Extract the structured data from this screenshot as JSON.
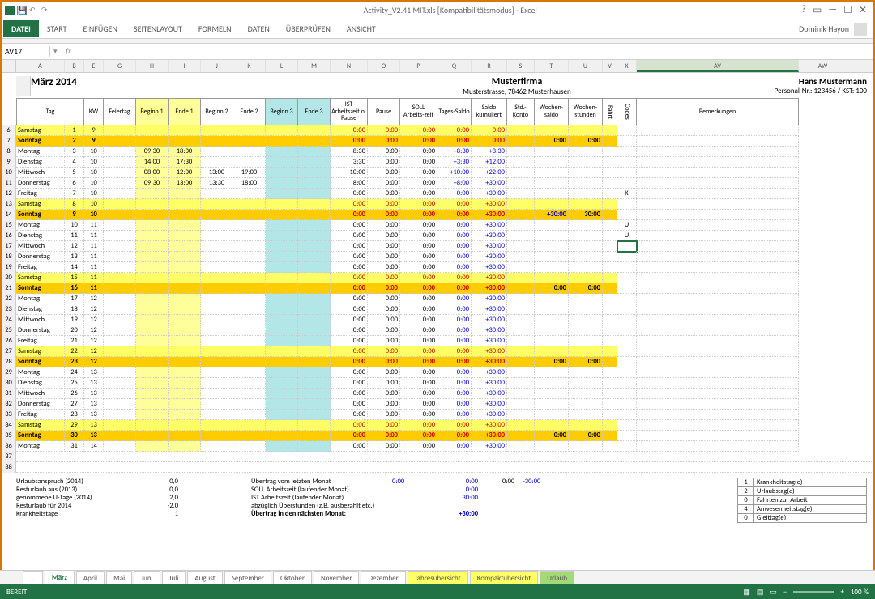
{
  "app": {
    "title": "Activity_V2.41 MIT.xls [Kompatibilitätsmodus] - Excel",
    "user": "Dominik Hayon"
  },
  "ribbon": {
    "file": "DATEI",
    "tabs": [
      "START",
      "EINFÜGEN",
      "SEITENLAYOUT",
      "FORMELN",
      "DATEN",
      "ÜBERPRÜFEN",
      "ANSICHT"
    ]
  },
  "namebox": "AV17",
  "formula": "",
  "colheaders": [
    "A",
    "B",
    "E",
    "G",
    "H",
    "I",
    "J",
    "K",
    "L",
    "M",
    "N",
    "O",
    "P",
    "Q",
    "R",
    "S",
    "T",
    "U",
    "V",
    "X",
    "AV",
    "AW"
  ],
  "selected_col_index": 20,
  "period": "März 2014",
  "company": {
    "name": "Musterfirma",
    "addr": "Musterstrasse, 78462 Musterhausen"
  },
  "person": {
    "name": "Hans Mustermann",
    "id": "Personal-Nr.: 123456 / KST: 100"
  },
  "headers": {
    "tag": "Tag",
    "kw": "KW",
    "feiertag": "Feiertag",
    "beginn1": "Beginn 1",
    "ende1": "Ende 1",
    "beginn2": "Beginn 2",
    "ende2": "Ende 2",
    "beginn3": "Beginn 3",
    "ende3": "Ende 3",
    "ist": "IST Arbeitszeit o. Pause",
    "pause": "Pause",
    "soll": "SOLL Arbeits-zeit",
    "tsaldo": "Tages-Saldo",
    "saldok": "Saldo kumuliert",
    "stdkonto": "Std.-Konto",
    "wsaldo": "Wochen-saldo",
    "wstd": "Wochen-stunden",
    "fahrt": "Fahrt",
    "codes": "Codes",
    "bem": "Bemerkungen"
  },
  "rows": [
    {
      "rn": 6,
      "day": "Samstag",
      "dn": 1,
      "kw": 9,
      "type": "sat",
      "ist": "0:00",
      "pause": "0:00",
      "soll": "0:00",
      "ts": "0:00",
      "sk": "0:00"
    },
    {
      "rn": 7,
      "day": "Sonntag",
      "dn": 2,
      "kw": 9,
      "type": "sun",
      "ist": "0:00",
      "pause": "0:00",
      "soll": "0:00",
      "ts": "0:00",
      "sk": "0:00",
      "ws": "0:00",
      "wst": "0:00"
    },
    {
      "rn": 8,
      "day": "Montag",
      "dn": 3,
      "kw": 10,
      "b1": "09:30",
      "e1": "18:00",
      "ist": "8:30",
      "pause": "0:00",
      "soll": "0:00",
      "ts": "+8:30",
      "sk": "+8:30"
    },
    {
      "rn": 9,
      "day": "Dienstag",
      "dn": 4,
      "kw": 10,
      "b1": "14:00",
      "e1": "17:30",
      "ist": "3:30",
      "pause": "0:00",
      "soll": "0:00",
      "ts": "+3:30",
      "sk": "+12:00"
    },
    {
      "rn": 10,
      "day": "Mittwoch",
      "dn": 5,
      "kw": 10,
      "b1": "08:00",
      "e1": "12:00",
      "b2": "13:00",
      "e2": "19:00",
      "ist": "10:00",
      "pause": "0:00",
      "soll": "0:00",
      "ts": "+10:00",
      "sk": "+22:00"
    },
    {
      "rn": 11,
      "day": "Donnerstag",
      "dn": 6,
      "kw": 10,
      "b1": "09:30",
      "e1": "13:00",
      "b2": "13:30",
      "e2": "18:00",
      "ist": "8:00",
      "pause": "0:00",
      "soll": "0:00",
      "ts": "+8:00",
      "sk": "+30:00"
    },
    {
      "rn": 12,
      "day": "Freitag",
      "dn": 7,
      "kw": 10,
      "ist": "0:00",
      "pause": "0:00",
      "soll": "0:00",
      "ts": "0:00",
      "sk": "+30:00",
      "codes": "K"
    },
    {
      "rn": 13,
      "day": "Samstag",
      "dn": 8,
      "kw": 10,
      "type": "sat",
      "ist": "0:00",
      "pause": "0:00",
      "soll": "0:00",
      "ts": "0:00",
      "sk": "+30:00"
    },
    {
      "rn": 14,
      "day": "Sonntag",
      "dn": 9,
      "kw": 10,
      "type": "sun",
      "ist": "0:00",
      "pause": "0:00",
      "soll": "0:00",
      "ts": "0:00",
      "sk": "+30:00",
      "ws": "+30:00",
      "wst": "30:00"
    },
    {
      "rn": 15,
      "day": "Montag",
      "dn": 10,
      "kw": 11,
      "ist": "0:00",
      "pause": "0:00",
      "soll": "0:00",
      "ts": "0:00",
      "sk": "+30:00",
      "codes": "U"
    },
    {
      "rn": 16,
      "day": "Dienstag",
      "dn": 11,
      "kw": 11,
      "ist": "0:00",
      "pause": "0:00",
      "soll": "0:00",
      "ts": "0:00",
      "sk": "+30:00",
      "codes": "U"
    },
    {
      "rn": 17,
      "day": "Mittwoch",
      "dn": 12,
      "kw": 11,
      "ist": "0:00",
      "pause": "0:00",
      "soll": "0:00",
      "ts": "0:00",
      "sk": "+30:00",
      "sel": true
    },
    {
      "rn": 18,
      "day": "Donnerstag",
      "dn": 13,
      "kw": 11,
      "ist": "0:00",
      "pause": "0:00",
      "soll": "0:00",
      "ts": "0:00",
      "sk": "+30:00"
    },
    {
      "rn": 19,
      "day": "Freitag",
      "dn": 14,
      "kw": 11,
      "ist": "0:00",
      "pause": "0:00",
      "soll": "0:00",
      "ts": "0:00",
      "sk": "+30:00"
    },
    {
      "rn": 20,
      "day": "Samstag",
      "dn": 15,
      "kw": 11,
      "type": "sat",
      "ist": "0:00",
      "pause": "0:00",
      "soll": "0:00",
      "ts": "0:00",
      "sk": "+30:00"
    },
    {
      "rn": 21,
      "day": "Sonntag",
      "dn": 16,
      "kw": 11,
      "type": "sun",
      "ist": "0:00",
      "pause": "0:00",
      "soll": "0:00",
      "ts": "0:00",
      "sk": "+30:00",
      "ws": "0:00",
      "wst": "0:00"
    },
    {
      "rn": 22,
      "day": "Montag",
      "dn": 17,
      "kw": 12,
      "ist": "0:00",
      "pause": "0:00",
      "soll": "0:00",
      "ts": "0:00",
      "sk": "+30:00"
    },
    {
      "rn": 23,
      "day": "Dienstag",
      "dn": 18,
      "kw": 12,
      "ist": "0:00",
      "pause": "0:00",
      "soll": "0:00",
      "ts": "0:00",
      "sk": "+30:00"
    },
    {
      "rn": 24,
      "day": "Mittwoch",
      "dn": 19,
      "kw": 12,
      "ist": "0:00",
      "pause": "0:00",
      "soll": "0:00",
      "ts": "0:00",
      "sk": "+30:00"
    },
    {
      "rn": 25,
      "day": "Donnerstag",
      "dn": 20,
      "kw": 12,
      "ist": "0:00",
      "pause": "0:00",
      "soll": "0:00",
      "ts": "0:00",
      "sk": "+30:00"
    },
    {
      "rn": 26,
      "day": "Freitag",
      "dn": 21,
      "kw": 12,
      "ist": "0:00",
      "pause": "0:00",
      "soll": "0:00",
      "ts": "0:00",
      "sk": "+30:00"
    },
    {
      "rn": 27,
      "day": "Samstag",
      "dn": 22,
      "kw": 12,
      "type": "sat",
      "ist": "0:00",
      "pause": "0:00",
      "soll": "0:00",
      "ts": "0:00",
      "sk": "+30:00"
    },
    {
      "rn": 28,
      "day": "Sonntag",
      "dn": 23,
      "kw": 12,
      "type": "sun",
      "ist": "0:00",
      "pause": "0:00",
      "soll": "0:00",
      "ts": "0:00",
      "sk": "+30:00",
      "ws": "0:00",
      "wst": "0:00"
    },
    {
      "rn": 29,
      "day": "Montag",
      "dn": 24,
      "kw": 13,
      "ist": "0:00",
      "pause": "0:00",
      "soll": "0:00",
      "ts": "0:00",
      "sk": "+30:00"
    },
    {
      "rn": 30,
      "day": "Dienstag",
      "dn": 25,
      "kw": 13,
      "ist": "0:00",
      "pause": "0:00",
      "soll": "0:00",
      "ts": "0:00",
      "sk": "+30:00"
    },
    {
      "rn": 31,
      "day": "Mittwoch",
      "dn": 26,
      "kw": 13,
      "ist": "0:00",
      "pause": "0:00",
      "soll": "0:00",
      "ts": "0:00",
      "sk": "+30:00"
    },
    {
      "rn": 32,
      "day": "Donnerstag",
      "dn": 27,
      "kw": 13,
      "ist": "0:00",
      "pause": "0:00",
      "soll": "0:00",
      "ts": "0:00",
      "sk": "+30:00"
    },
    {
      "rn": 33,
      "day": "Freitag",
      "dn": 28,
      "kw": 13,
      "ist": "0:00",
      "pause": "0:00",
      "soll": "0:00",
      "ts": "0:00",
      "sk": "+30:00"
    },
    {
      "rn": 34,
      "day": "Samstag",
      "dn": 29,
      "kw": 13,
      "type": "sat",
      "ist": "0:00",
      "pause": "0:00",
      "soll": "0:00",
      "ts": "0:00",
      "sk": "+30:00"
    },
    {
      "rn": 35,
      "day": "Sonntag",
      "dn": 30,
      "kw": 13,
      "type": "sun",
      "ist": "0:00",
      "pause": "0:00",
      "soll": "0:00",
      "ts": "0:00",
      "sk": "+30:00",
      "ws": "0:00",
      "wst": "0:00"
    },
    {
      "rn": 36,
      "day": "Montag",
      "dn": 31,
      "kw": 14,
      "ist": "0:00",
      "pause": "0:00",
      "soll": "0:00",
      "ts": "0:00",
      "sk": "+30:00"
    }
  ],
  "summary_left": [
    {
      "l": "Urlaubsanspruch (2014)",
      "v": "0,0"
    },
    {
      "l": "Resturlaub aus (2013)",
      "v": "0,0"
    },
    {
      "l": "genommene U-Tage (2014)",
      "v": "2,0"
    },
    {
      "l": "Resturlaub für 2014",
      "v": "-2,0"
    },
    {
      "l": "Krankheitstage",
      "v": "1"
    }
  ],
  "summary_mid": [
    {
      "l": "Übertrag vom letzten Monat",
      "v": "0:00",
      "v2": "0:00"
    },
    {
      "l": "SOLL Arbeitszeit (laufender Monat)",
      "v": "0:00"
    },
    {
      "l": "IST Arbeitszeit (laufender Monat)",
      "v": "30:00"
    },
    {
      "l": "abzüglich Überstunden (z.B. ausbezahlt etc.)",
      "v": ""
    },
    {
      "l": "Übertrag in den nächsten Monat:",
      "v": "+30:00",
      "bold": true
    }
  ],
  "summary_extra": {
    "a": "0:00",
    "b": "-30:00"
  },
  "summary_right": [
    {
      "n": "1",
      "t": "Krankheitstag(e)"
    },
    {
      "n": "2",
      "t": "Urlaubstag(e)"
    },
    {
      "n": "0",
      "t": "Fahrten zur Arbeit"
    },
    {
      "n": "4",
      "t": "Anwesenheitstag(e)"
    },
    {
      "n": "0",
      "t": "Gleittag(e)"
    }
  ],
  "sheettabs": [
    {
      "l": "...",
      "cls": ""
    },
    {
      "l": "März",
      "cls": "active"
    },
    {
      "l": "April"
    },
    {
      "l": "Mai"
    },
    {
      "l": "Juni"
    },
    {
      "l": "Juli"
    },
    {
      "l": "August"
    },
    {
      "l": "September"
    },
    {
      "l": "Oktober"
    },
    {
      "l": "November"
    },
    {
      "l": "Dezember"
    },
    {
      "l": "Jahresübersicht",
      "cls": "y"
    },
    {
      "l": "Kompaktübersicht",
      "cls": "y"
    },
    {
      "l": "Urlaub",
      "cls": "g"
    }
  ],
  "status": {
    "ready": "BEREIT",
    "zoom": "100 %"
  },
  "colors": {
    "excel_green": "#217346",
    "sat": "#ffff66",
    "sun": "#ffcc00",
    "yellow_light": "#ffff99",
    "cyan_light": "#b3e6e6",
    "blue": "#0000cc",
    "red": "#cc0000",
    "green": "#008000"
  }
}
